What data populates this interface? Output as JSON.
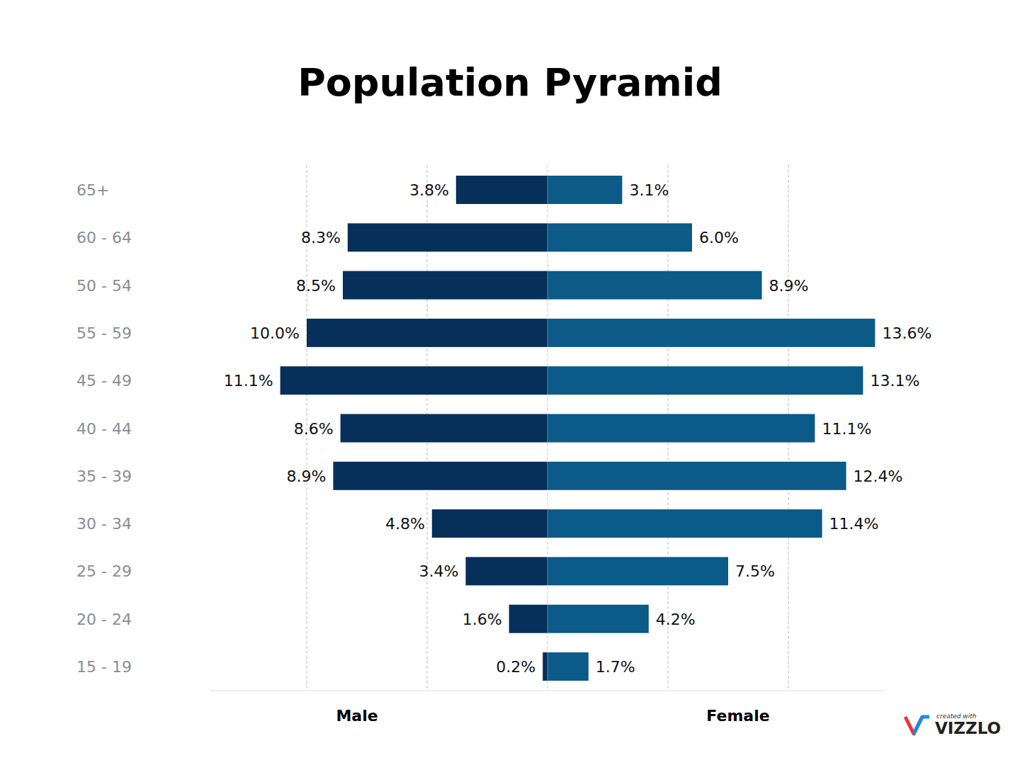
{
  "chart_data": {
    "type": "bar",
    "title": "Population Pyramid",
    "orientation": "horizontal",
    "categories": [
      "65+",
      "60 - 64",
      "50 - 54",
      "55 - 59",
      "45 - 49",
      "40 - 44",
      "35 - 39",
      "30 - 34",
      "25 - 29",
      "20 - 24",
      "15 - 19"
    ],
    "series": [
      {
        "name": "Male",
        "color": "#06305a",
        "values": [
          3.8,
          8.3,
          8.5,
          10.0,
          11.1,
          8.6,
          8.9,
          4.8,
          3.4,
          1.6,
          0.2
        ],
        "value_labels": [
          "3.8%",
          "8.3%",
          "8.5%",
          "10.0%",
          "11.1%",
          "8.6%",
          "8.9%",
          "4.8%",
          "3.4%",
          "1.6%",
          "0.2%"
        ]
      },
      {
        "name": "Female",
        "color": "#0b5a87",
        "values": [
          3.1,
          6.0,
          8.9,
          13.6,
          13.1,
          11.1,
          12.4,
          11.4,
          7.5,
          4.2,
          1.7
        ],
        "value_labels": [
          "3.1%",
          "6.0%",
          "8.9%",
          "13.6%",
          "13.1%",
          "11.1%",
          "12.4%",
          "11.4%",
          "7.5%",
          "4.2%",
          "1.7%"
        ]
      }
    ],
    "xlim": [
      0,
      14
    ],
    "xticks": [
      0,
      5,
      10
    ],
    "grid": true,
    "data_labels": true,
    "tick_labels": false,
    "annotations": [
      "created with",
      "VIZZLO"
    ]
  }
}
